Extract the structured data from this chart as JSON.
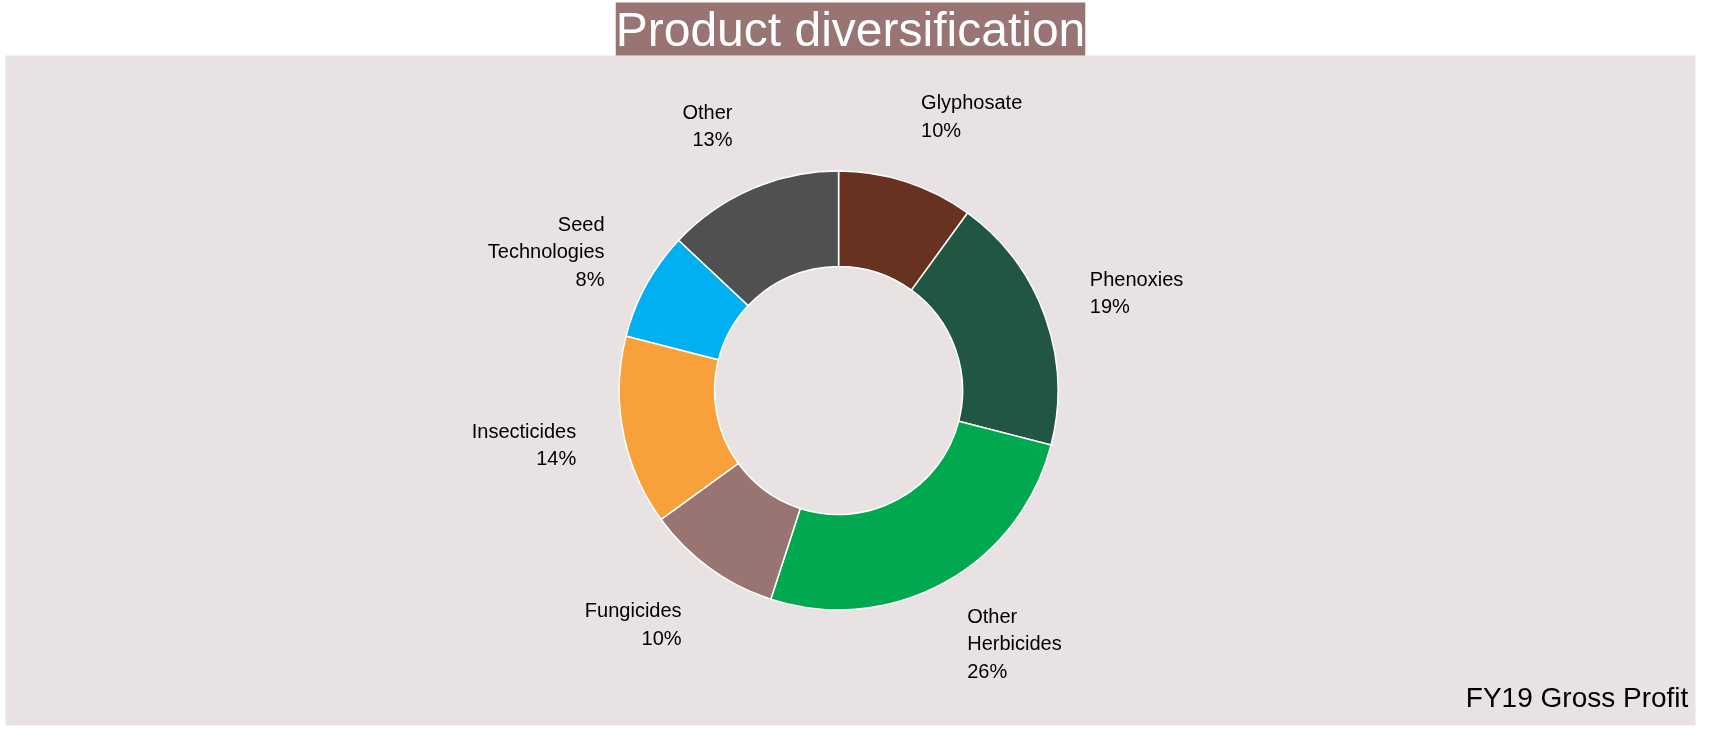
{
  "chart_data": {
    "type": "donut",
    "title": "Product diversification",
    "categories": [
      "Glyphosate",
      "Phenoxies",
      "Other Herbicides",
      "Fungicides",
      "Insecticides",
      "Seed Technologies",
      "Other"
    ],
    "values": [
      10,
      19,
      26,
      10,
      14,
      8,
      13
    ],
    "colors": [
      "#673220",
      "#215643",
      "#00a94f",
      "#987473",
      "#f8a13b",
      "#00b0f0",
      "#505050"
    ],
    "value_labels": [
      "10%",
      "19%",
      "26%",
      "10%",
      "14%",
      "8%",
      "13%"
    ],
    "legend": false,
    "annotations": [
      "FY19 Gross Profit"
    ]
  }
}
